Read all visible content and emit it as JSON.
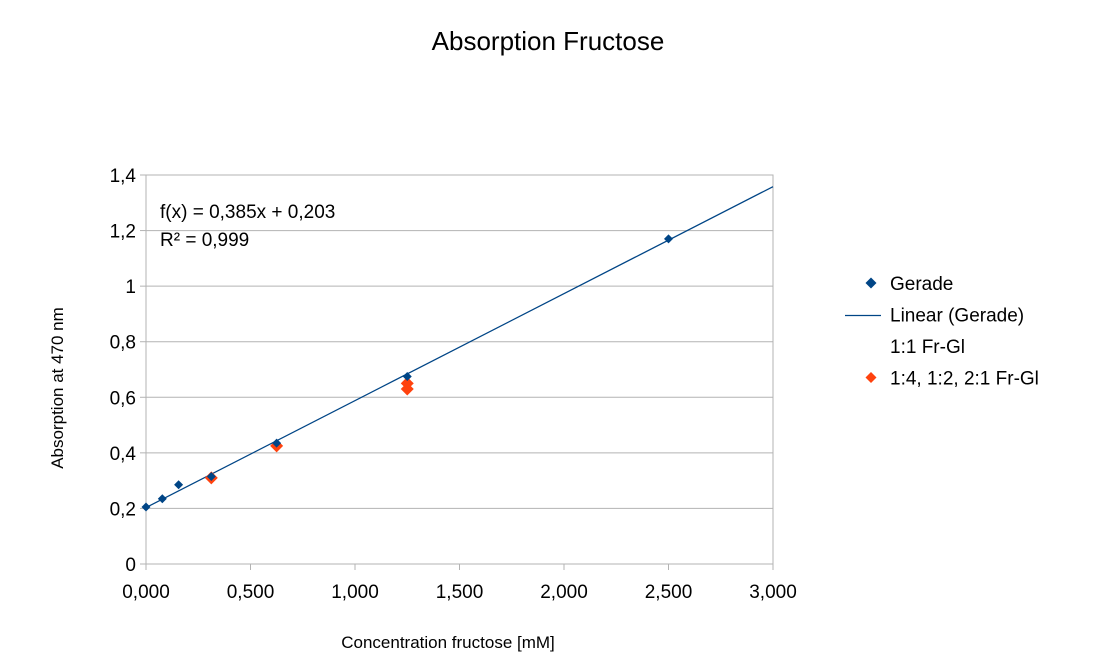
{
  "chart_data": {
    "type": "scatter",
    "title": "Absorption Fructose",
    "xlabel": "Concentration fructose [mM]",
    "ylabel": "Absorption at 470 nm",
    "xlim": [
      0,
      3
    ],
    "ylim": [
      0,
      1.4
    ],
    "x_ticks": [
      0,
      0.5,
      1,
      1.5,
      2,
      2.5,
      3
    ],
    "x_tick_labels": [
      "0,000",
      "0,500",
      "1,000",
      "1,500",
      "2,000",
      "2,500",
      "3,000"
    ],
    "y_ticks": [
      0,
      0.2,
      0.4,
      0.6,
      0.8,
      1,
      1.2,
      1.4
    ],
    "y_tick_labels": [
      "0",
      "0,2",
      "0,4",
      "0,6",
      "0,8",
      "1",
      "1,2",
      "1,4"
    ],
    "grid": "horizontal",
    "legend_position": "right",
    "series": [
      {
        "name": "Gerade",
        "kind": "scatter",
        "marker": "diamond",
        "color": "#004586",
        "points": [
          {
            "x": 0,
            "y": 0.205
          },
          {
            "x": 0.078,
            "y": 0.235
          },
          {
            "x": 0.156,
            "y": 0.285
          },
          {
            "x": 0.3125,
            "y": 0.315
          },
          {
            "x": 0.625,
            "y": 0.435
          },
          {
            "x": 1.25,
            "y": 0.675
          },
          {
            "x": 2.5,
            "y": 1.17
          }
        ]
      },
      {
        "name": "Linear (Gerade)",
        "kind": "trendline",
        "color": "#004586",
        "slope": 0.385,
        "intercept": 0.203,
        "x_range": [
          0,
          3
        ]
      },
      {
        "name": "1:1 Fr-Gl",
        "kind": "scatter",
        "marker": "none",
        "color": "#ffffff",
        "points": []
      },
      {
        "name": "1:4, 1:2, 2:1 Fr-Gl",
        "kind": "scatter",
        "marker": "diamond",
        "color": "#ff420e",
        "points": [
          {
            "x": 0.3125,
            "y": 0.31
          },
          {
            "x": 0.625,
            "y": 0.425
          },
          {
            "x": 1.25,
            "y": 0.63
          },
          {
            "x": 1.25,
            "y": 0.65
          }
        ]
      }
    ],
    "annotation": {
      "equation": "f(x) = 0,385x + 0,203",
      "r_squared": "R² = 0,999"
    }
  }
}
